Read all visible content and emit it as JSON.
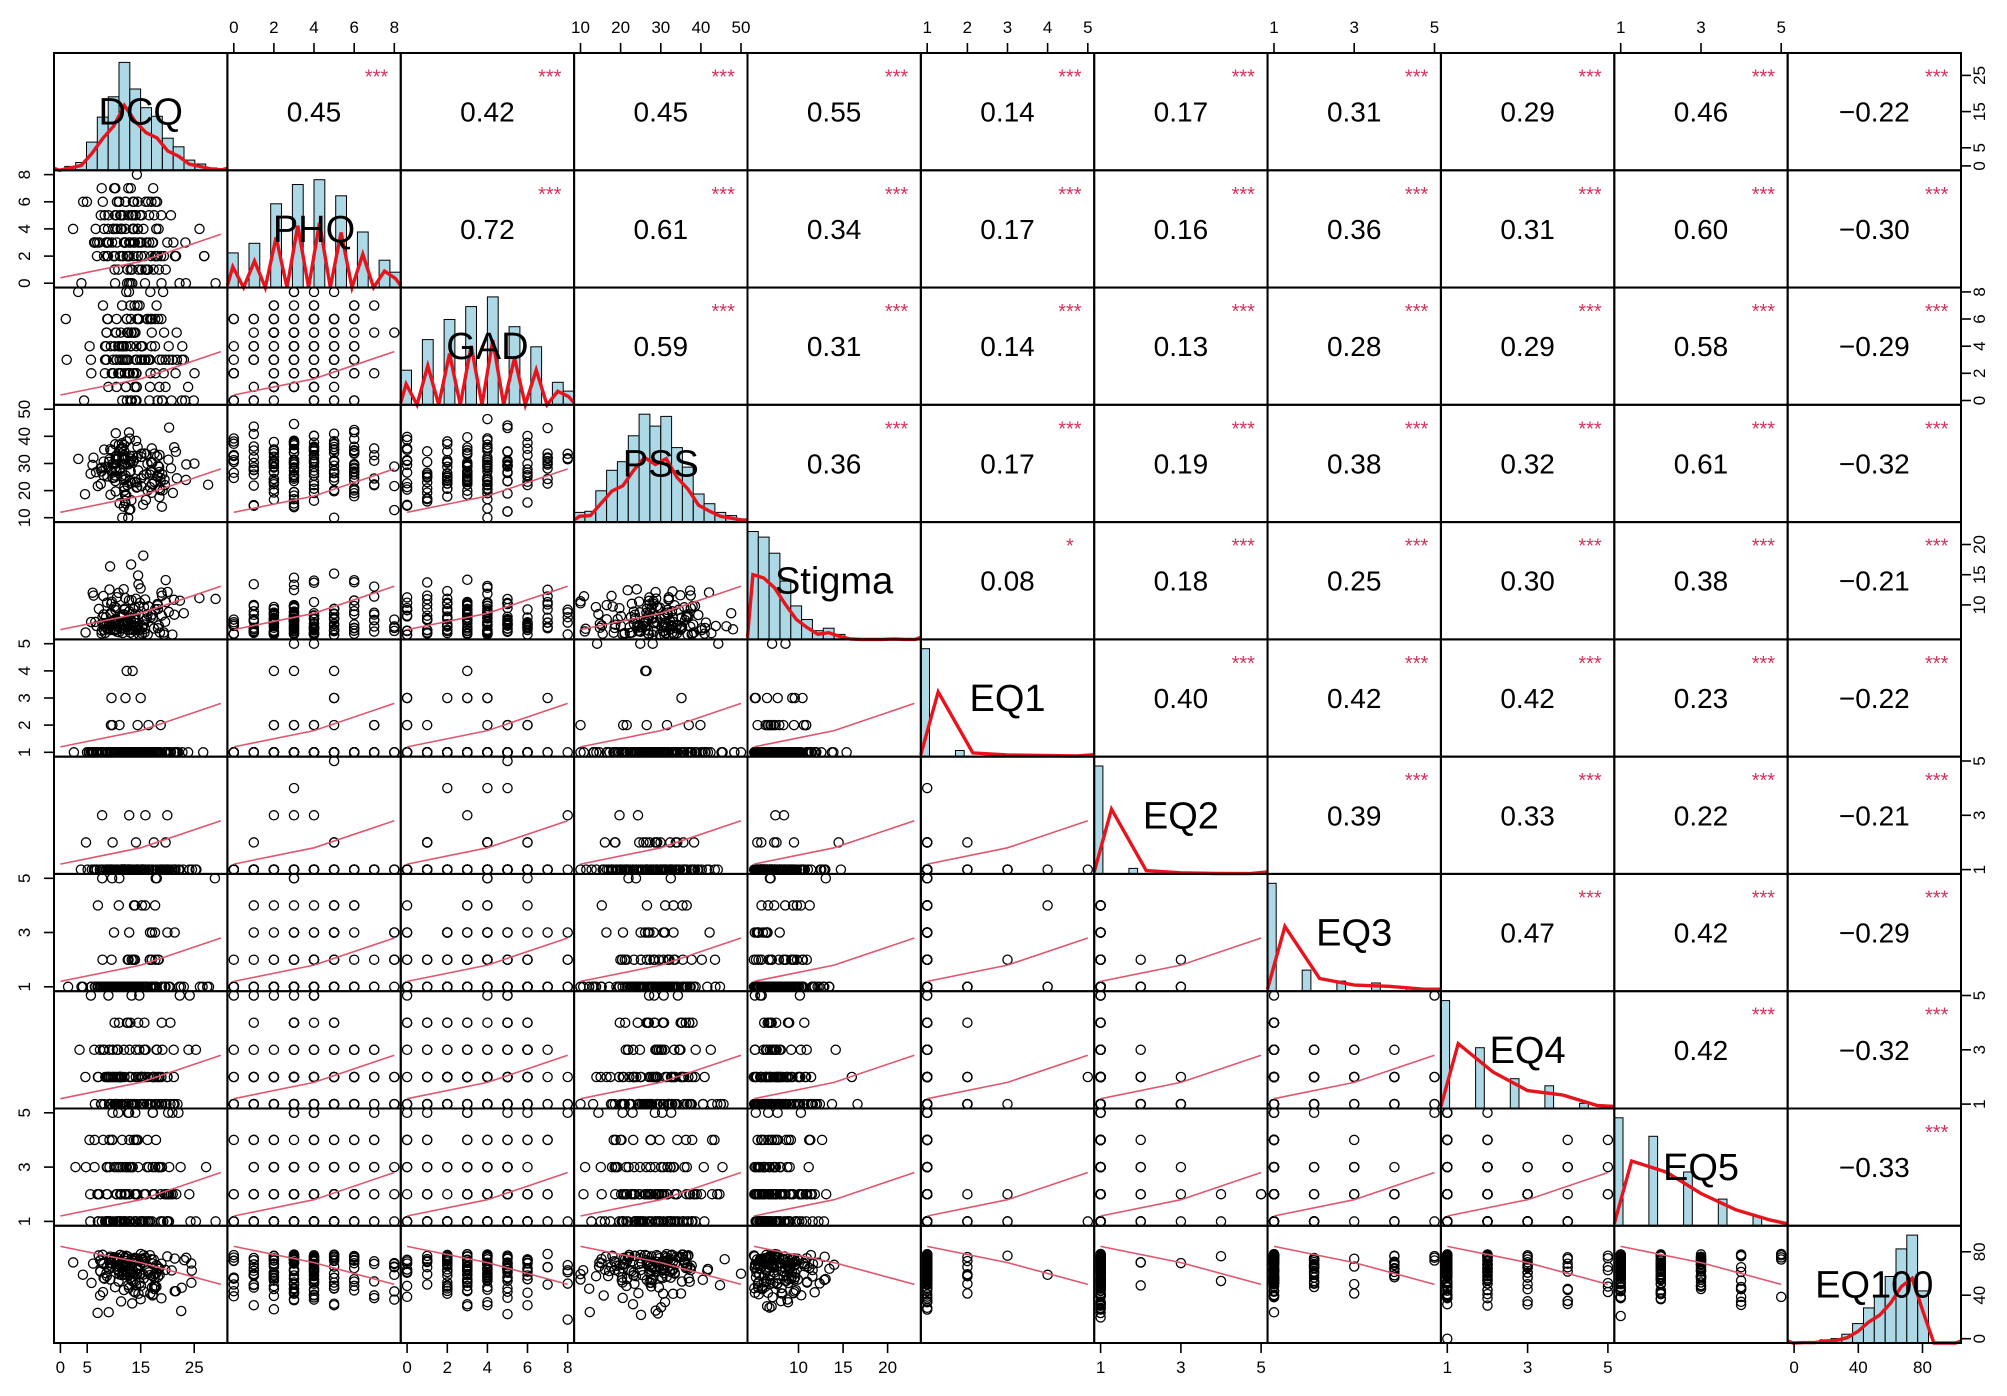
{
  "chart_data": {
    "type": "scatter-matrix",
    "variables": [
      "DCQ",
      "PHQ",
      "GAD",
      "PSS",
      "Stigma",
      "EQ1",
      "EQ2",
      "EQ3",
      "EQ4",
      "EQ5",
      "EQ100"
    ],
    "ranges": [
      [
        0,
        30
      ],
      [
        0,
        8
      ],
      [
        0,
        8
      ],
      [
        10,
        50
      ],
      [
        5,
        23
      ],
      [
        1,
        5
      ],
      [
        1,
        5
      ],
      [
        1,
        5
      ],
      [
        1,
        5
      ],
      [
        1,
        5
      ],
      [
        0,
        100
      ]
    ],
    "tick_labels": [
      [
        "0",
        "5",
        "15",
        "25"
      ],
      [
        "0",
        "2",
        "4",
        "6",
        "8"
      ],
      [
        "0",
        "2",
        "4",
        "6",
        "8"
      ],
      [
        "10",
        "20",
        "30",
        "40",
        "50"
      ],
      [
        "10",
        "15",
        "20"
      ],
      [
        "1",
        "2",
        "3",
        "4",
        "5"
      ],
      [
        "1",
        "3",
        "5"
      ],
      [
        "1",
        "3",
        "5"
      ],
      [
        "1",
        "3",
        "5"
      ],
      [
        "1",
        "3",
        "5"
      ],
      [
        "0",
        "40",
        "80"
      ]
    ],
    "tick_values": [
      [
        0,
        5,
        15,
        25
      ],
      [
        0,
        2,
        4,
        6,
        8
      ],
      [
        0,
        2,
        4,
        6,
        8
      ],
      [
        10,
        20,
        30,
        40,
        50
      ],
      [
        10,
        15,
        20
      ],
      [
        1,
        2,
        3,
        4,
        5
      ],
      [
        1,
        3,
        5
      ],
      [
        1,
        3,
        5
      ],
      [
        1,
        3,
        5
      ],
      [
        1,
        3,
        5
      ],
      [
        0,
        40,
        80
      ]
    ],
    "correlations": [
      {
        "row": "DCQ",
        "values": [
          "0.45",
          "0.42",
          "0.45",
          "0.55",
          "0.14",
          "0.17",
          "0.31",
          "0.29",
          "0.46",
          "−0.22"
        ],
        "sig": [
          "***",
          "***",
          "***",
          "***",
          "***",
          "***",
          "***",
          "***",
          "***",
          "***"
        ]
      },
      {
        "row": "PHQ",
        "values": [
          "0.72",
          "0.61",
          "0.34",
          "0.17",
          "0.16",
          "0.36",
          "0.31",
          "0.60",
          "−0.30"
        ],
        "sig": [
          "***",
          "***",
          "***",
          "***",
          "***",
          "***",
          "***",
          "***",
          "***"
        ]
      },
      {
        "row": "GAD",
        "values": [
          "0.59",
          "0.31",
          "0.14",
          "0.13",
          "0.28",
          "0.29",
          "0.58",
          "−0.29"
        ],
        "sig": [
          "***",
          "***",
          "***",
          "***",
          "***",
          "***",
          "***",
          "***"
        ]
      },
      {
        "row": "PSS",
        "values": [
          "0.36",
          "0.17",
          "0.19",
          "0.38",
          "0.32",
          "0.61",
          "−0.32"
        ],
        "sig": [
          "***",
          "***",
          "***",
          "***",
          "***",
          "***",
          "***"
        ]
      },
      {
        "row": "Stigma",
        "values": [
          "0.08",
          "0.18",
          "0.25",
          "0.30",
          "0.38",
          "−0.21"
        ],
        "sig": [
          "*",
          "***",
          "***",
          "***",
          "***",
          "***"
        ]
      },
      {
        "row": "EQ1",
        "values": [
          "0.40",
          "0.42",
          "0.42",
          "0.23",
          "−0.22"
        ],
        "sig": [
          "***",
          "***",
          "***",
          "***",
          "***"
        ]
      },
      {
        "row": "EQ2",
        "values": [
          "0.39",
          "0.33",
          "0.22",
          "−0.21"
        ],
        "sig": [
          "***",
          "***",
          "***",
          "***"
        ]
      },
      {
        "row": "EQ3",
        "values": [
          "0.47",
          "0.42",
          "−0.29"
        ],
        "sig": [
          "***",
          "***",
          "***"
        ]
      },
      {
        "row": "EQ4",
        "values": [
          "0.42",
          "−0.32"
        ],
        "sig": [
          "***",
          "***"
        ]
      },
      {
        "row": "EQ5",
        "values": [
          "−0.33"
        ],
        "sig": [
          "***"
        ]
      }
    ],
    "histogram_style": {
      "bar_fill": "#add8e6",
      "density_color": "#e8141d"
    },
    "scatter_style": {
      "point": "open circle",
      "smoother_color": "#e0566e"
    },
    "significance_color": "#d1335b"
  }
}
